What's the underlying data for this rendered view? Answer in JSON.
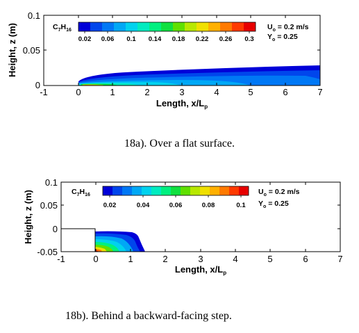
{
  "palette": [
    "#0000d8",
    "#0046ec",
    "#0078f5",
    "#00a8f5",
    "#00d2ee",
    "#00ecc0",
    "#00f080",
    "#10e040",
    "#60e000",
    "#b8e800",
    "#f0e000",
    "#ffb000",
    "#ff7a00",
    "#ff3a00",
    "#e80000"
  ],
  "chart_data": [
    {
      "type": "heatmap",
      "species_label": "C",
      "species_sub1": "7",
      "species_mid": "H",
      "species_sub2": "16",
      "colorbar_ticks": [
        "0.02",
        "0.06",
        "0.1",
        "0.14",
        "0.18",
        "0.22",
        "0.26",
        "0.3"
      ],
      "velocity_label": "U",
      "velocity_sub": "o",
      "velocity_value": " = 0.2 m/s",
      "fraction_label": "Y",
      "fraction_sub": "o",
      "fraction_value": " = 0.25",
      "xlabel": "Length, x/L",
      "xlabel_sub": "p",
      "ylabel": "Height, z (m)",
      "x_ticks": [
        "-1",
        "0",
        "1",
        "2",
        "3",
        "4",
        "5",
        "6",
        "7"
      ],
      "y_ticks": [
        "0.1",
        "0.05",
        "0"
      ],
      "xlim": [
        -1,
        7
      ],
      "ylim": [
        0,
        0.1
      ],
      "caption": "18a). Over a flat surface."
    },
    {
      "type": "heatmap",
      "species_label": "C",
      "species_sub1": "7",
      "species_mid": "H",
      "species_sub2": "16",
      "colorbar_ticks": [
        "0.02",
        "0.04",
        "0.06",
        "0.08",
        "0.1"
      ],
      "velocity_label": "U",
      "velocity_sub": "o",
      "velocity_value": " = 0.2 m/s",
      "fraction_label": "Y",
      "fraction_sub": "o",
      "fraction_value": " = 0.25",
      "xlabel": "Length, x/L",
      "xlabel_sub": "p",
      "ylabel": "Height, z (m)",
      "x_ticks": [
        "-1",
        "0",
        "1",
        "2",
        "3",
        "4",
        "5",
        "6",
        "7"
      ],
      "y_ticks": [
        "0.1",
        "0.05",
        "0",
        "-0.05"
      ],
      "xlim": [
        -1,
        7
      ],
      "ylim": [
        -0.05,
        0.1
      ],
      "caption": "18b). Behind a backward-facing step."
    }
  ]
}
